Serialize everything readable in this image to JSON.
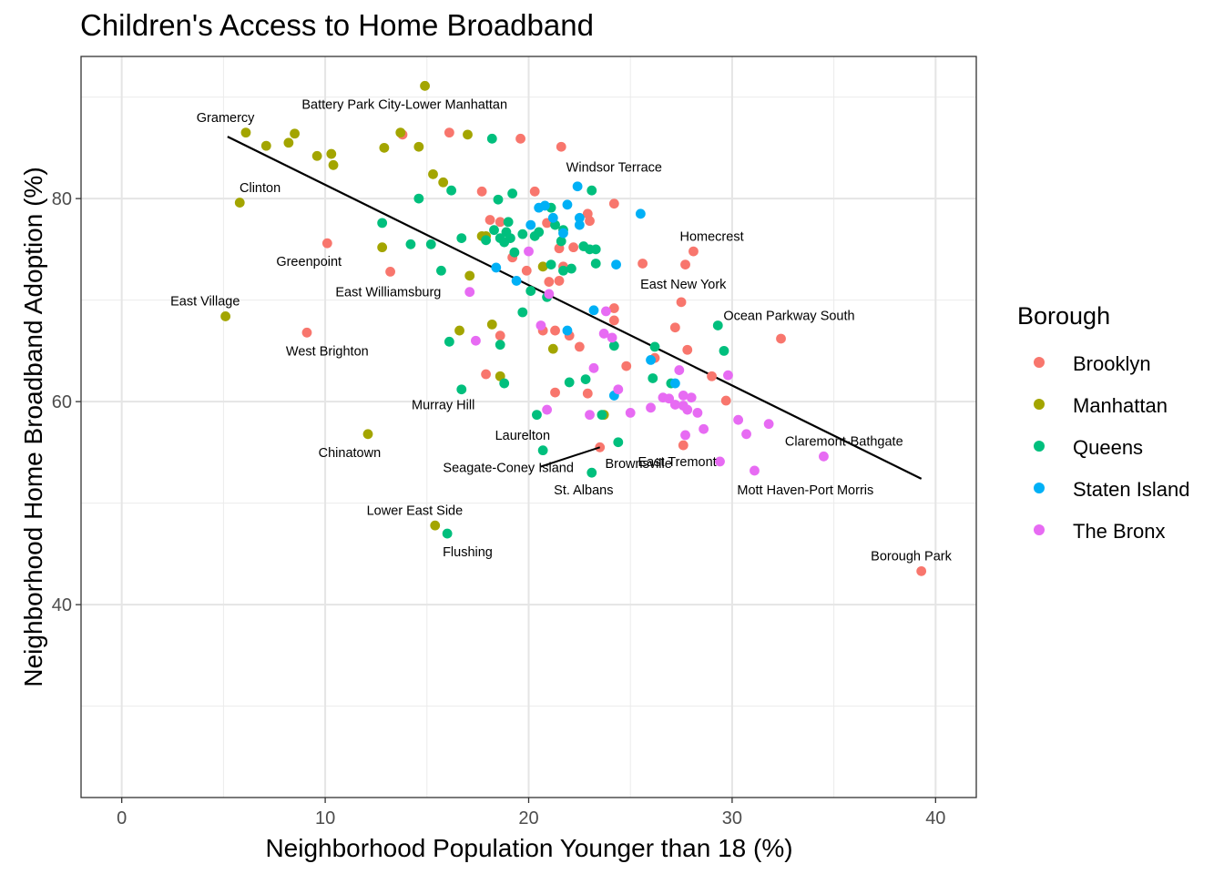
{
  "chart_data": {
    "type": "scatter",
    "title": "Children's Access to Home Broadband",
    "xlabel": "Neighborhood Population Younger than 18 (%)",
    "ylabel": "Neighborhood Home Broadband Adoption (%)",
    "xlim": [
      -2,
      42
    ],
    "ylim": [
      21,
      94
    ],
    "x_ticks": [
      0,
      10,
      20,
      30,
      40
    ],
    "y_ticks": [
      40,
      60,
      80
    ],
    "grid": true,
    "legend": {
      "title": "Borough",
      "position": "right"
    },
    "colors": {
      "Brooklyn": "#F8766D",
      "Manhattan": "#A3A500",
      "Queens": "#00BF7D",
      "Staten Island": "#00B0F6",
      "The Bronx": "#E76BF3"
    },
    "trend_line": {
      "x": [
        5.2,
        39.3
      ],
      "y": [
        86.1,
        52.4
      ]
    },
    "series": [
      {
        "name": "Brooklyn",
        "points": [
          [
            13.8,
            86.3
          ],
          [
            16.1,
            86.5
          ],
          [
            19.6,
            85.9
          ],
          [
            21.6,
            85.1
          ],
          [
            17.7,
            80.7
          ],
          [
            20.3,
            80.7
          ],
          [
            24.2,
            79.5
          ],
          [
            18.1,
            77.9
          ],
          [
            18.6,
            77.7
          ],
          [
            20.9,
            77.6
          ],
          [
            22.9,
            78.5
          ],
          [
            23.0,
            77.8
          ],
          [
            21.5,
            75.1
          ],
          [
            22.2,
            75.2
          ],
          [
            28.1,
            74.8
          ],
          [
            10.1,
            75.6
          ],
          [
            19.2,
            74.2
          ],
          [
            21.7,
            73.3
          ],
          [
            25.6,
            73.6
          ],
          [
            27.7,
            73.5
          ],
          [
            13.2,
            72.8
          ],
          [
            19.9,
            72.9
          ],
          [
            21.0,
            71.8
          ],
          [
            21.5,
            71.9
          ],
          [
            27.5,
            69.8
          ],
          [
            24.2,
            69.2
          ],
          [
            24.2,
            68.0
          ],
          [
            20.7,
            67.0
          ],
          [
            21.3,
            67.0
          ],
          [
            22.0,
            66.5
          ],
          [
            27.2,
            67.3
          ],
          [
            9.1,
            66.8
          ],
          [
            18.6,
            66.5
          ],
          [
            32.4,
            66.2
          ],
          [
            22.5,
            65.4
          ],
          [
            26.2,
            64.3
          ],
          [
            27.8,
            65.1
          ],
          [
            24.8,
            63.5
          ],
          [
            17.9,
            62.7
          ],
          [
            21.3,
            60.9
          ],
          [
            22.9,
            60.8
          ],
          [
            29.0,
            62.5
          ],
          [
            29.7,
            60.1
          ],
          [
            23.5,
            55.5
          ],
          [
            27.6,
            55.7
          ],
          [
            39.3,
            43.3
          ]
        ]
      },
      {
        "name": "Manhattan",
        "points": [
          [
            14.9,
            91.1
          ],
          [
            6.1,
            86.5
          ],
          [
            8.5,
            86.4
          ],
          [
            13.7,
            86.5
          ],
          [
            17.0,
            86.3
          ],
          [
            7.1,
            85.2
          ],
          [
            8.2,
            85.5
          ],
          [
            12.9,
            85.0
          ],
          [
            14.6,
            85.1
          ],
          [
            9.6,
            84.2
          ],
          [
            10.3,
            84.4
          ],
          [
            10.4,
            83.3
          ],
          [
            15.3,
            82.4
          ],
          [
            15.8,
            81.6
          ],
          [
            5.8,
            79.6
          ],
          [
            17.7,
            76.3
          ],
          [
            17.9,
            76.3
          ],
          [
            12.8,
            75.2
          ],
          [
            17.1,
            72.4
          ],
          [
            20.7,
            73.3
          ],
          [
            5.1,
            68.4
          ],
          [
            16.6,
            67.0
          ],
          [
            18.2,
            67.6
          ],
          [
            21.2,
            65.2
          ],
          [
            18.6,
            62.5
          ],
          [
            23.7,
            58.7
          ],
          [
            12.1,
            56.8
          ],
          [
            15.4,
            47.8
          ]
        ]
      },
      {
        "name": "Queens",
        "points": [
          [
            18.2,
            85.9
          ],
          [
            16.2,
            80.8
          ],
          [
            14.6,
            80.0
          ],
          [
            18.5,
            79.9
          ],
          [
            19.2,
            80.5
          ],
          [
            23.1,
            80.8
          ],
          [
            12.8,
            77.6
          ],
          [
            18.3,
            76.9
          ],
          [
            18.9,
            76.7
          ],
          [
            19.0,
            77.7
          ],
          [
            21.1,
            79.1
          ],
          [
            21.3,
            77.4
          ],
          [
            21.7,
            76.9
          ],
          [
            16.7,
            76.1
          ],
          [
            17.9,
            75.9
          ],
          [
            18.6,
            76.1
          ],
          [
            18.8,
            75.7
          ],
          [
            19.1,
            76.1
          ],
          [
            19.7,
            76.5
          ],
          [
            20.3,
            76.3
          ],
          [
            20.5,
            76.7
          ],
          [
            21.6,
            75.8
          ],
          [
            22.7,
            75.3
          ],
          [
            23.0,
            75.0
          ],
          [
            23.3,
            75.0
          ],
          [
            14.2,
            75.5
          ],
          [
            15.2,
            75.5
          ],
          [
            19.3,
            74.7
          ],
          [
            21.1,
            73.5
          ],
          [
            21.7,
            72.9
          ],
          [
            22.1,
            73.1
          ],
          [
            23.3,
            73.6
          ],
          [
            15.7,
            72.9
          ],
          [
            20.1,
            70.9
          ],
          [
            20.9,
            70.3
          ],
          [
            19.7,
            68.8
          ],
          [
            16.1,
            65.9
          ],
          [
            18.6,
            65.6
          ],
          [
            24.2,
            65.5
          ],
          [
            26.2,
            65.4
          ],
          [
            29.3,
            67.5
          ],
          [
            29.6,
            65.0
          ],
          [
            22.8,
            62.2
          ],
          [
            22.0,
            61.9
          ],
          [
            26.1,
            62.3
          ],
          [
            27.0,
            61.8
          ],
          [
            16.7,
            61.2
          ],
          [
            18.8,
            61.8
          ],
          [
            20.4,
            58.7
          ],
          [
            23.6,
            58.7
          ],
          [
            24.4,
            56.0
          ],
          [
            20.7,
            55.2
          ],
          [
            23.1,
            53.0
          ],
          [
            16.0,
            47.0
          ]
        ]
      },
      {
        "name": "Staten Island",
        "points": [
          [
            22.4,
            81.2
          ],
          [
            20.5,
            79.1
          ],
          [
            20.8,
            79.3
          ],
          [
            21.9,
            79.4
          ],
          [
            25.5,
            78.5
          ],
          [
            21.2,
            78.1
          ],
          [
            22.5,
            78.1
          ],
          [
            20.1,
            77.4
          ],
          [
            22.5,
            77.4
          ],
          [
            21.7,
            76.6
          ],
          [
            18.4,
            73.2
          ],
          [
            24.3,
            73.5
          ],
          [
            19.4,
            71.9
          ],
          [
            23.2,
            69.0
          ],
          [
            21.9,
            67.0
          ],
          [
            26.0,
            64.1
          ],
          [
            27.2,
            61.8
          ],
          [
            24.2,
            60.6
          ]
        ]
      },
      {
        "name": "The Bronx",
        "points": [
          [
            20.0,
            74.8
          ],
          [
            17.1,
            70.8
          ],
          [
            21.0,
            70.6
          ],
          [
            20.6,
            67.5
          ],
          [
            23.8,
            68.9
          ],
          [
            23.7,
            66.7
          ],
          [
            24.1,
            66.3
          ],
          [
            17.4,
            66.0
          ],
          [
            23.2,
            63.3
          ],
          [
            27.4,
            63.1
          ],
          [
            29.8,
            62.6
          ],
          [
            24.4,
            61.2
          ],
          [
            26.6,
            60.4
          ],
          [
            26.9,
            60.3
          ],
          [
            27.2,
            59.7
          ],
          [
            27.6,
            60.6
          ],
          [
            28.0,
            60.4
          ],
          [
            27.6,
            59.6
          ],
          [
            27.8,
            59.2
          ],
          [
            28.3,
            58.9
          ],
          [
            20.9,
            59.2
          ],
          [
            23.0,
            58.7
          ],
          [
            25.0,
            58.9
          ],
          [
            26.0,
            59.4
          ],
          [
            30.3,
            58.2
          ],
          [
            31.8,
            57.8
          ],
          [
            28.6,
            57.3
          ],
          [
            27.7,
            56.7
          ],
          [
            30.7,
            56.8
          ],
          [
            34.5,
            54.6
          ],
          [
            29.4,
            54.1
          ],
          [
            31.1,
            53.2
          ]
        ]
      }
    ],
    "annotations": [
      {
        "text": "Battery Park City-Lower Manhattan",
        "x": 14.9,
        "y": 91.1,
        "dx": -1.0,
        "dy": -1.8
      },
      {
        "text": "Gramercy",
        "x": 6.1,
        "y": 86.5,
        "dx": -1.0,
        "dy": 1.5
      },
      {
        "text": "Windsor Terrace",
        "x": 21.6,
        "y": 85.1,
        "dx": 2.6,
        "dy": -2.0
      },
      {
        "text": "Clinton",
        "x": 5.8,
        "y": 79.6,
        "dx": 1.0,
        "dy": 1.5
      },
      {
        "text": "Homecrest",
        "x": 28.1,
        "y": 74.8,
        "dx": 0.9,
        "dy": 1.5
      },
      {
        "text": "Greenpoint",
        "x": 10.1,
        "y": 75.6,
        "dx": -0.9,
        "dy": -1.8
      },
      {
        "text": "East Williamsburg",
        "x": 13.2,
        "y": 72.8,
        "dx": -0.1,
        "dy": -2.0
      },
      {
        "text": "East New York",
        "x": 27.5,
        "y": 69.8,
        "dx": 0.1,
        "dy": 1.8
      },
      {
        "text": "East Village",
        "x": 5.1,
        "y": 68.4,
        "dx": -1.0,
        "dy": 1.5
      },
      {
        "text": "Ocean Parkway South",
        "x": 29.3,
        "y": 67.5,
        "dx": 3.5,
        "dy": 1.0
      },
      {
        "text": "West Brighton",
        "x": 9.1,
        "y": 66.8,
        "dx": 1.0,
        "dy": -1.8
      },
      {
        "text": "Murray Hill",
        "x": 16.7,
        "y": 61.2,
        "dx": -0.9,
        "dy": -1.5
      },
      {
        "text": "Laurelton",
        "x": 20.7,
        "y": 55.2,
        "dx": -1.0,
        "dy": 1.5
      },
      {
        "text": "Chinatown",
        "x": 12.1,
        "y": 56.8,
        "dx": -0.9,
        "dy": -1.8
      },
      {
        "text": "Claremont-Bathgate",
        "x": 34.5,
        "y": 54.6,
        "dx": 1.0,
        "dy": 1.5
      },
      {
        "text": "Seagate-Coney Island",
        "x": 23.5,
        "y": 55.5,
        "dx": -4.5,
        "dy": -2.0,
        "line": [
          [
            20.6,
            53.6
          ],
          [
            23.5,
            55.5
          ]
        ]
      },
      {
        "text": "Brownsville",
        "x": 23.5,
        "y": 55.5,
        "dx": 1.9,
        "dy": -1.6
      },
      {
        "text": "East Tremont",
        "x": 27.6,
        "y": 55.7,
        "dx": -0.3,
        "dy": -1.6
      },
      {
        "text": "St. Albans",
        "x": 23.1,
        "y": 53.0,
        "dx": -0.4,
        "dy": -1.7
      },
      {
        "text": "Mott Haven-Port Morris",
        "x": 31.1,
        "y": 53.2,
        "dx": 2.5,
        "dy": -1.9
      },
      {
        "text": "Lower East Side",
        "x": 15.4,
        "y": 47.8,
        "dx": -1.0,
        "dy": 1.5
      },
      {
        "text": "Flushing",
        "x": 16.0,
        "y": 47.0,
        "dx": 1.0,
        "dy": -1.8
      },
      {
        "text": "Borough Park",
        "x": 39.3,
        "y": 43.3,
        "dx": -0.5,
        "dy": 1.5
      }
    ]
  }
}
